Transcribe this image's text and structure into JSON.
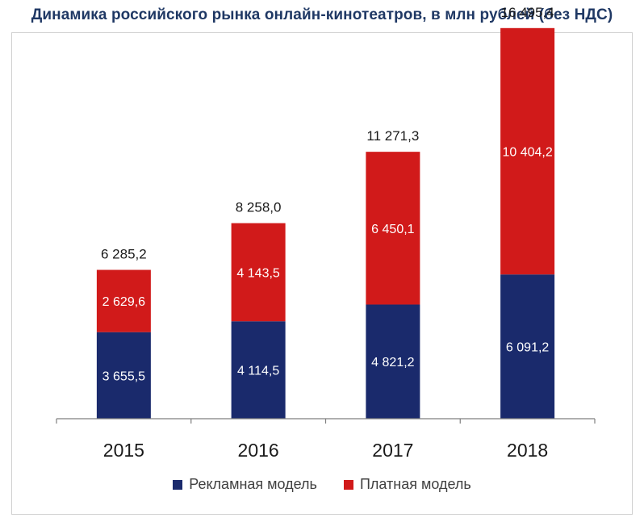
{
  "title": "Динамика российского рынка онлайн-кинотеатров, в млн рублей (без НДС)",
  "colors": {
    "advertising": "#1a2a6c",
    "paid": "#d11a1a",
    "axis": "#7f7f7f"
  },
  "chart_data": {
    "type": "bar",
    "stacked": true,
    "title": "Динамика российского рынка онлайн-кинотеатров, в млн рублей (без НДС)",
    "categories": [
      "2015",
      "2016",
      "2017",
      "2018"
    ],
    "series": [
      {
        "name": "Рекламная модель",
        "values": [
          3655.5,
          4114.5,
          4821.2,
          6091.2
        ],
        "labels": [
          "3 655,5",
          "4 114,5",
          "4 821,2",
          "6 091,2"
        ]
      },
      {
        "name": "Платная модель",
        "values": [
          2629.6,
          4143.5,
          6450.1,
          10404.2
        ],
        "labels": [
          "2 629,6",
          "4 143,5",
          "6 450,1",
          "10 404,2"
        ]
      }
    ],
    "totals": [
      6285.2,
      8258.0,
      11271.3,
      16495.4
    ],
    "total_labels": [
      "6 285,2",
      "8 258,0",
      "11 271,3",
      "16 495,4"
    ],
    "ylim": [
      0,
      17000
    ],
    "legend": "bottom",
    "grid": false
  }
}
